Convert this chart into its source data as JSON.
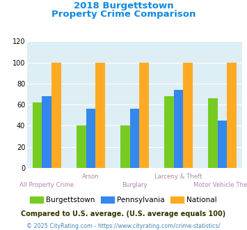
{
  "title_line1": "2018 Burgettstown",
  "title_line2": "Property Crime Comparison",
  "categories": [
    "All Property Crime",
    "Arson",
    "Burglary",
    "Larceny & Theft",
    "Motor Vehicle Theft"
  ],
  "burgettstown": [
    62,
    40,
    40,
    68,
    66
  ],
  "pennsylvania": [
    68,
    56,
    56,
    74,
    45
  ],
  "national": [
    100,
    100,
    100,
    100,
    100
  ],
  "color_burgettstown": "#77cc22",
  "color_pennsylvania": "#3388ee",
  "color_national": "#ffaa22",
  "ylim": [
    0,
    120
  ],
  "yticks": [
    0,
    20,
    40,
    60,
    80,
    100,
    120
  ],
  "legend_labels": [
    "Burgettstown",
    "Pennsylvania",
    "National"
  ],
  "footnote1": "Compared to U.S. average. (U.S. average equals 100)",
  "footnote2": "© 2025 CityRating.com - https://www.cityrating.com/crime-statistics/",
  "title_color": "#1188dd",
  "footnote1_color": "#333300",
  "footnote2_color": "#4488bb",
  "bg_color": "#ddeef4",
  "bar_width": 0.22,
  "group_positions": [
    0,
    1,
    2,
    3,
    4
  ]
}
